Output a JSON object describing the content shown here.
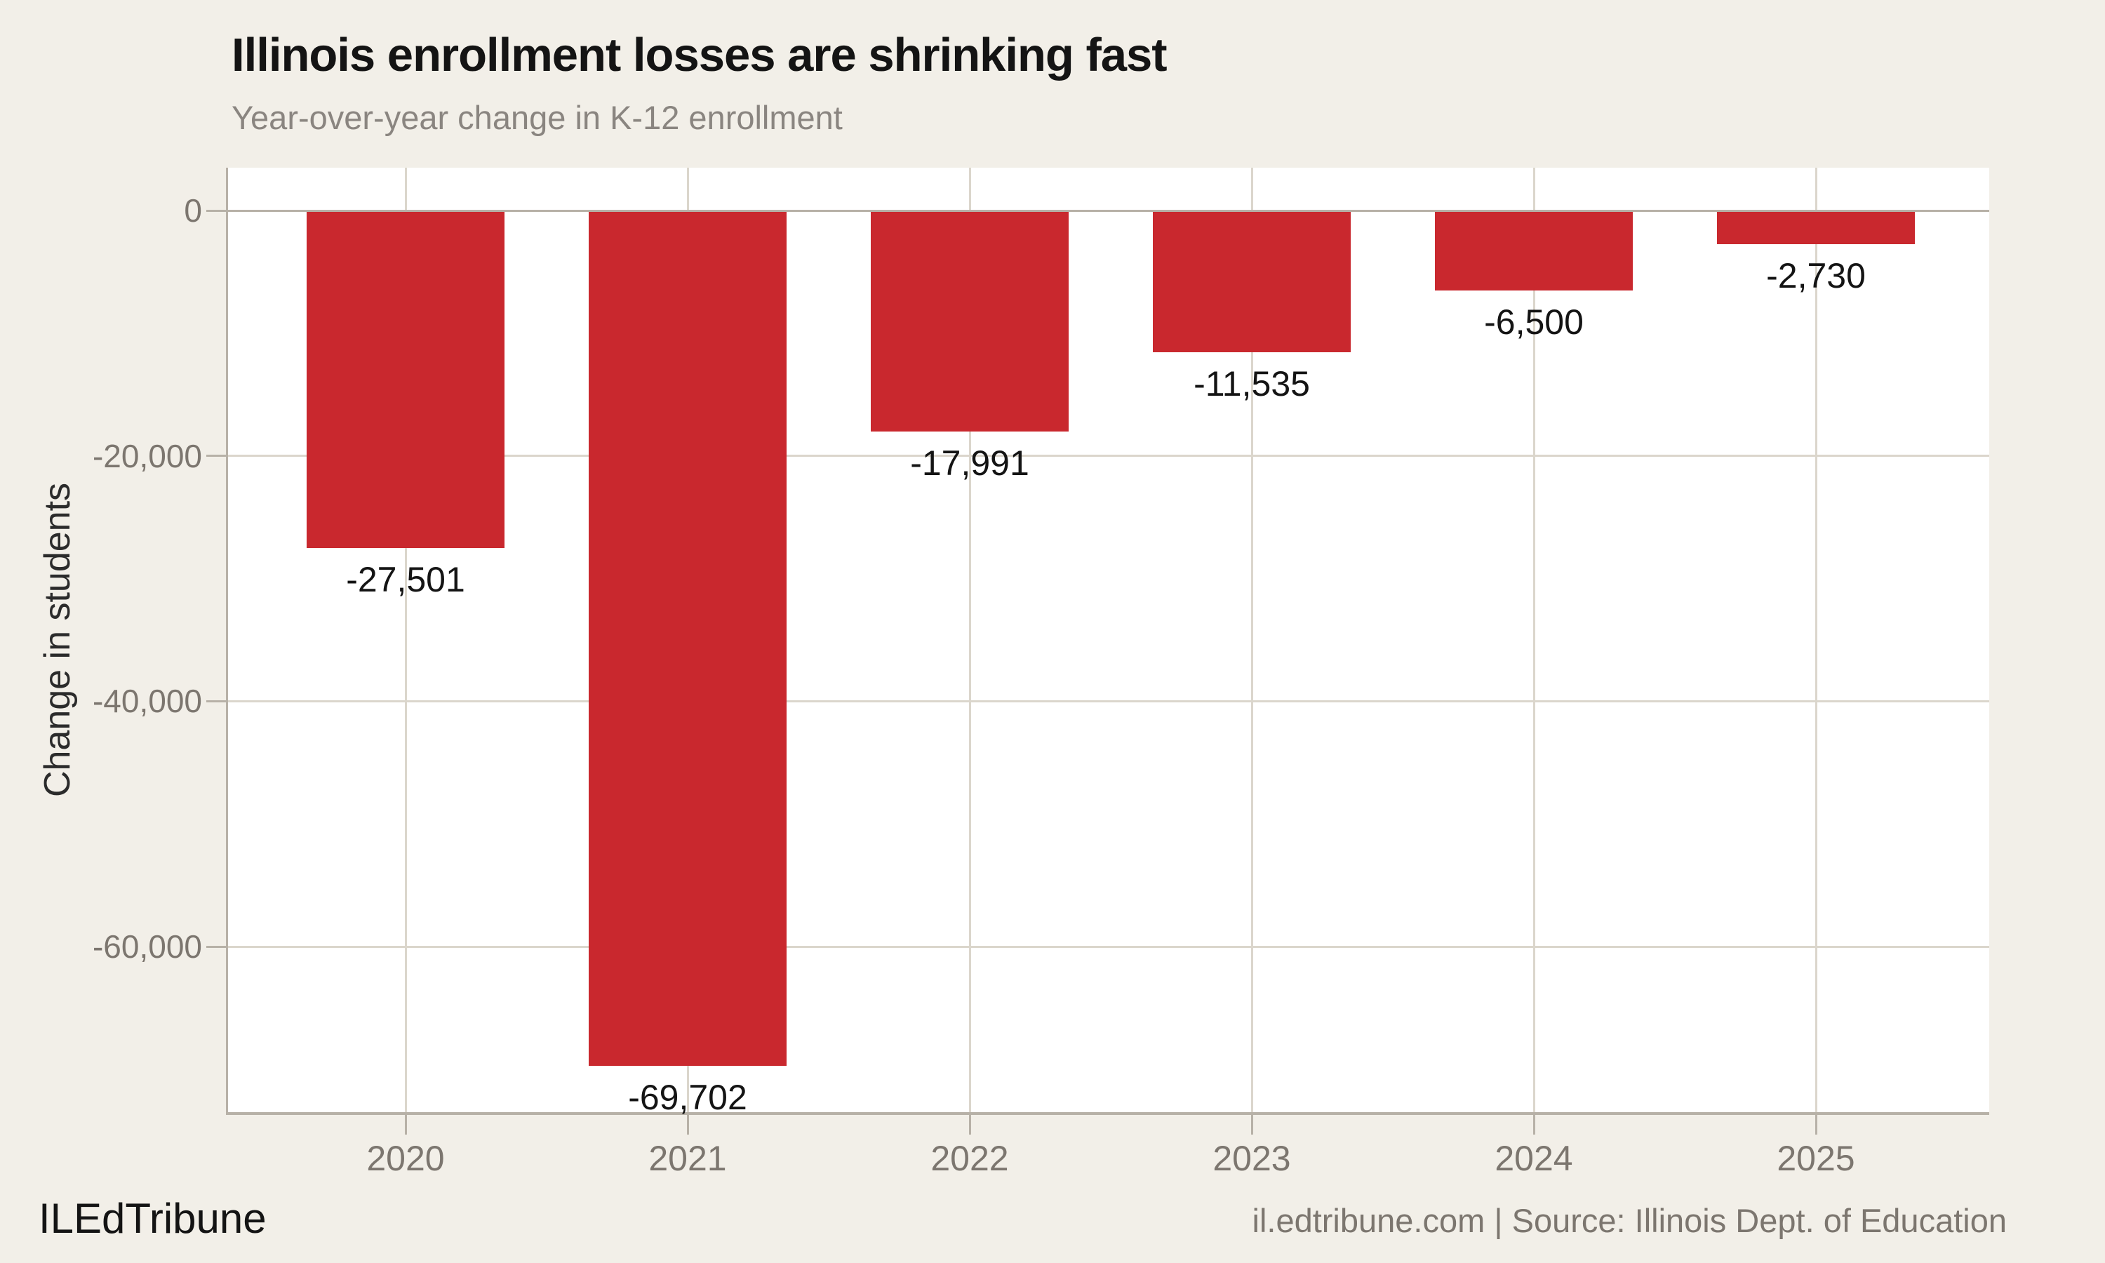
{
  "header": {
    "title": "Illinois enrollment losses are shrinking fast",
    "subtitle": "Year-over-year change in K-12 enrollment"
  },
  "chart_data": {
    "type": "bar",
    "title": "Illinois enrollment losses are shrinking fast",
    "subtitle": "Year-over-year change in K-12 enrollment",
    "categories": [
      "2020",
      "2021",
      "2022",
      "2023",
      "2024",
      "2025"
    ],
    "values": [
      -27501,
      -69702,
      -17991,
      -11535,
      -6500,
      -2730
    ],
    "bar_labels": [
      "-27,501",
      "-69,702",
      "-17,991",
      "-11,535",
      "-6,500",
      "-2,730"
    ],
    "xlabel": "",
    "ylabel": "Change in students",
    "y_ticks": [
      {
        "value": 0,
        "label": "0"
      },
      {
        "value": -20000,
        "label": "-20,000"
      },
      {
        "value": -40000,
        "label": "-40,000"
      },
      {
        "value": -60000,
        "label": "-60,000"
      }
    ],
    "y_gridlines": [
      -20000,
      -40000,
      -60000
    ],
    "ylim": [
      -73500,
      3500
    ],
    "grid": true,
    "legend_position": "none",
    "bar_color": "#c9282e"
  },
  "footer": {
    "brand": "ILEdTribune",
    "attribution": "il.edtribune.com | Source: Illinois Dept. of Education"
  },
  "colors": {
    "background": "#f2efe8",
    "plot_background": "#ffffff",
    "bar": "#c9282e",
    "axis_line": "#b7b1a7",
    "gridline": "#dbd6cc",
    "tick_label": "#7c766f",
    "title": "#141414",
    "subtitle": "#8a8580",
    "bar_label": "#141414",
    "footer_text": "#7c766f"
  }
}
